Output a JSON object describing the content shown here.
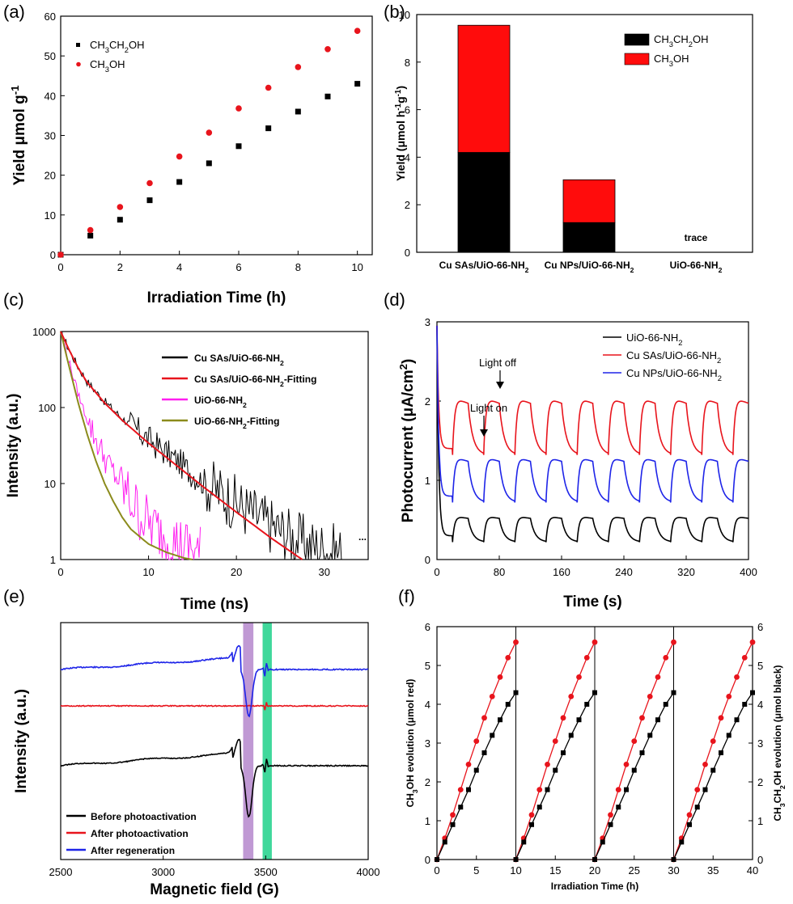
{
  "panels": {
    "a": "(a)",
    "b": "(b)",
    "c": "(c)",
    "d": "(d)",
    "e": "(e)",
    "f": "(f)"
  },
  "chart_data": [
    {
      "id": "a",
      "type": "scatter",
      "title": "",
      "xlabel": "Irradiation Time (h)",
      "ylabel": "Yield μmol g-1",
      "xlim": [
        0,
        10.5
      ],
      "ylim": [
        0,
        60
      ],
      "xticks": [
        0,
        2,
        4,
        6,
        8,
        10
      ],
      "yticks": [
        0,
        10,
        20,
        30,
        40,
        50,
        60
      ],
      "legend": "top-left",
      "series": [
        {
          "name": "CH3CH2OH",
          "color": "#000000",
          "marker": "square",
          "x": [
            0,
            1,
            2,
            3,
            4,
            5,
            6,
            7,
            8,
            9,
            10
          ],
          "y": [
            0,
            4.8,
            8.8,
            13.7,
            18.3,
            23.0,
            27.3,
            31.8,
            36.0,
            39.8,
            43.0
          ]
        },
        {
          "name": "CH3OH",
          "color": "#e8141c",
          "marker": "circle",
          "x": [
            0,
            1,
            2,
            3,
            4,
            5,
            6,
            7,
            8,
            9,
            10
          ],
          "y": [
            0,
            6.2,
            12.0,
            18.0,
            24.7,
            30.7,
            36.8,
            42.0,
            47.2,
            51.7,
            56.3
          ]
        }
      ]
    },
    {
      "id": "b",
      "type": "bar",
      "stacked": true,
      "title": "",
      "ylabel": "Yield (μmol h-1g-1)",
      "ylim": [
        0,
        10
      ],
      "yticks": [
        0,
        2,
        4,
        6,
        8,
        10
      ],
      "categories": [
        "Cu SAs/UiO-66-NH2",
        "Cu NPs/UiO-66-NH2",
        "UiO-66-NH2"
      ],
      "legend": "top-right",
      "series": [
        {
          "name": "CH3CH2OH",
          "color": "#000000",
          "values": [
            4.2,
            1.25,
            0
          ]
        },
        {
          "name": "CH3OH",
          "color": "#ff0c0c",
          "values": [
            5.35,
            1.8,
            0
          ]
        }
      ],
      "annotations": [
        "trace"
      ]
    },
    {
      "id": "c",
      "type": "line",
      "title": "",
      "yscale": "log",
      "xlabel": "Time (ns)",
      "ylabel": "Intensity (a.u.)",
      "xlim": [
        0,
        35
      ],
      "ylim": [
        1,
        1000
      ],
      "xticks": [
        0,
        10,
        20,
        30
      ],
      "yticks": [
        1,
        10,
        100,
        1000
      ],
      "legend": "top-right",
      "series": [
        {
          "name": "Cu SAs/UiO-66-NH2",
          "color": "#000000",
          "style": "noisy",
          "x": [
            0,
            1,
            2,
            3,
            5,
            7,
            10,
            13,
            16,
            20,
            24,
            28,
            32
          ],
          "y": [
            1000,
            560,
            340,
            220,
            120,
            72,
            38,
            21,
            11,
            5.5,
            2.8,
            1.6,
            1.2
          ]
        },
        {
          "name": "Cu SAs/UiO-66-NH2-Fitting",
          "color": "#e8141c",
          "style": "smooth",
          "x": [
            0,
            1,
            2,
            3,
            5,
            7,
            10,
            13,
            16,
            20,
            24,
            27.5
          ],
          "y": [
            1000,
            560,
            330,
            215,
            115,
            68,
            34,
            18,
            9.5,
            4.2,
            1.9,
            1.0
          ]
        },
        {
          "name": "UiO-66-NH2",
          "color": "#ff1ef0",
          "style": "noisy",
          "x": [
            0,
            1,
            2,
            3,
            4,
            5,
            6,
            7,
            8,
            9,
            10,
            12,
            14,
            16
          ],
          "y": [
            1000,
            380,
            150,
            70,
            38,
            22,
            14,
            9,
            6,
            4,
            3,
            2,
            1.5,
            1.2
          ]
        },
        {
          "name": "UiO-66-NH2-Fitting",
          "color": "#8b8b1c",
          "style": "smooth",
          "x": [
            0,
            1,
            2,
            3,
            4,
            5,
            6,
            7,
            8,
            10,
            12,
            14,
            15
          ],
          "y": [
            1000,
            330,
            115,
            45,
            20,
            10,
            5.8,
            3.6,
            2.5,
            1.6,
            1.25,
            1.05,
            1.0
          ]
        }
      ],
      "annotations": [
        "..."
      ]
    },
    {
      "id": "d",
      "type": "line",
      "title": "",
      "xlabel": "Time (s)",
      "ylabel": "Photocurrent (μA/cm2)",
      "xlim": [
        0,
        400
      ],
      "ylim": [
        0,
        3
      ],
      "xticks": [
        0,
        80,
        160,
        240,
        320,
        400
      ],
      "yticks": [
        0,
        1,
        2,
        3
      ],
      "legend": "top-right",
      "cycle_period_s": 40,
      "series": [
        {
          "name": "UiO-66-NH2",
          "color": "#000000",
          "on_peak": 0.55,
          "off_trough": 0.3
        },
        {
          "name": "Cu SAs/UiO-66-NH2",
          "color": "#e8141c",
          "on_peak": 2.05,
          "off_trough": 1.4
        },
        {
          "name": "Cu NPs/UiO-66-NH2",
          "color": "#1e24e8",
          "on_peak": 1.3,
          "off_trough": 0.8
        }
      ],
      "annotations": [
        "Light off",
        "Light on"
      ]
    },
    {
      "id": "e",
      "type": "line",
      "title": "",
      "xlabel": "Magnetic field (G)",
      "ylabel": "Intensity (a.u.)",
      "xlim": [
        2500,
        4000
      ],
      "xticks": [
        2500,
        3000,
        3500,
        4000
      ],
      "legend": "bottom-left",
      "highlight_bands": [
        {
          "from": 3390,
          "to": 3440,
          "color": "#b587cc"
        },
        {
          "from": 3485,
          "to": 3530,
          "color": "#1fd18a"
        }
      ],
      "series": [
        {
          "name": "Before photoactivation",
          "color": "#000000"
        },
        {
          "name": "After photoactivation",
          "color": "#e8141c"
        },
        {
          "name": "After regeneration",
          "color": "#1e24e8"
        }
      ]
    },
    {
      "id": "f",
      "type": "line",
      "title": "",
      "xlabel": "Irradiation Time (h)",
      "ylabel_left": "CH3OH evolution (μmol red)",
      "ylabel_right": "CH3CH2OH evolution (μmol black)",
      "xlim": [
        0,
        40
      ],
      "ylim": [
        0,
        6
      ],
      "xticks": [
        0,
        5,
        10,
        15,
        20,
        25,
        30,
        35,
        40
      ],
      "yticks": [
        0,
        1,
        2,
        3,
        4,
        5,
        6
      ],
      "cycle_length_h": 10,
      "series": [
        {
          "name": "CH3OH",
          "color": "#e8141c",
          "marker": "circle",
          "x_per_cycle": [
            0,
            1,
            2,
            3,
            4,
            5,
            6,
            7,
            8,
            9,
            10
          ],
          "y_per_cycle": [
            0,
            0.55,
            1.15,
            1.8,
            2.45,
            3.05,
            3.65,
            4.2,
            4.7,
            5.2,
            5.6
          ]
        },
        {
          "name": "CH3CH2OH",
          "color": "#000000",
          "marker": "square",
          "x_per_cycle": [
            0,
            1,
            2,
            3,
            4,
            5,
            6,
            7,
            8,
            9,
            10
          ],
          "y_per_cycle": [
            0,
            0.45,
            0.9,
            1.35,
            1.8,
            2.3,
            2.75,
            3.2,
            3.6,
            4.0,
            4.3
          ]
        }
      ]
    }
  ]
}
